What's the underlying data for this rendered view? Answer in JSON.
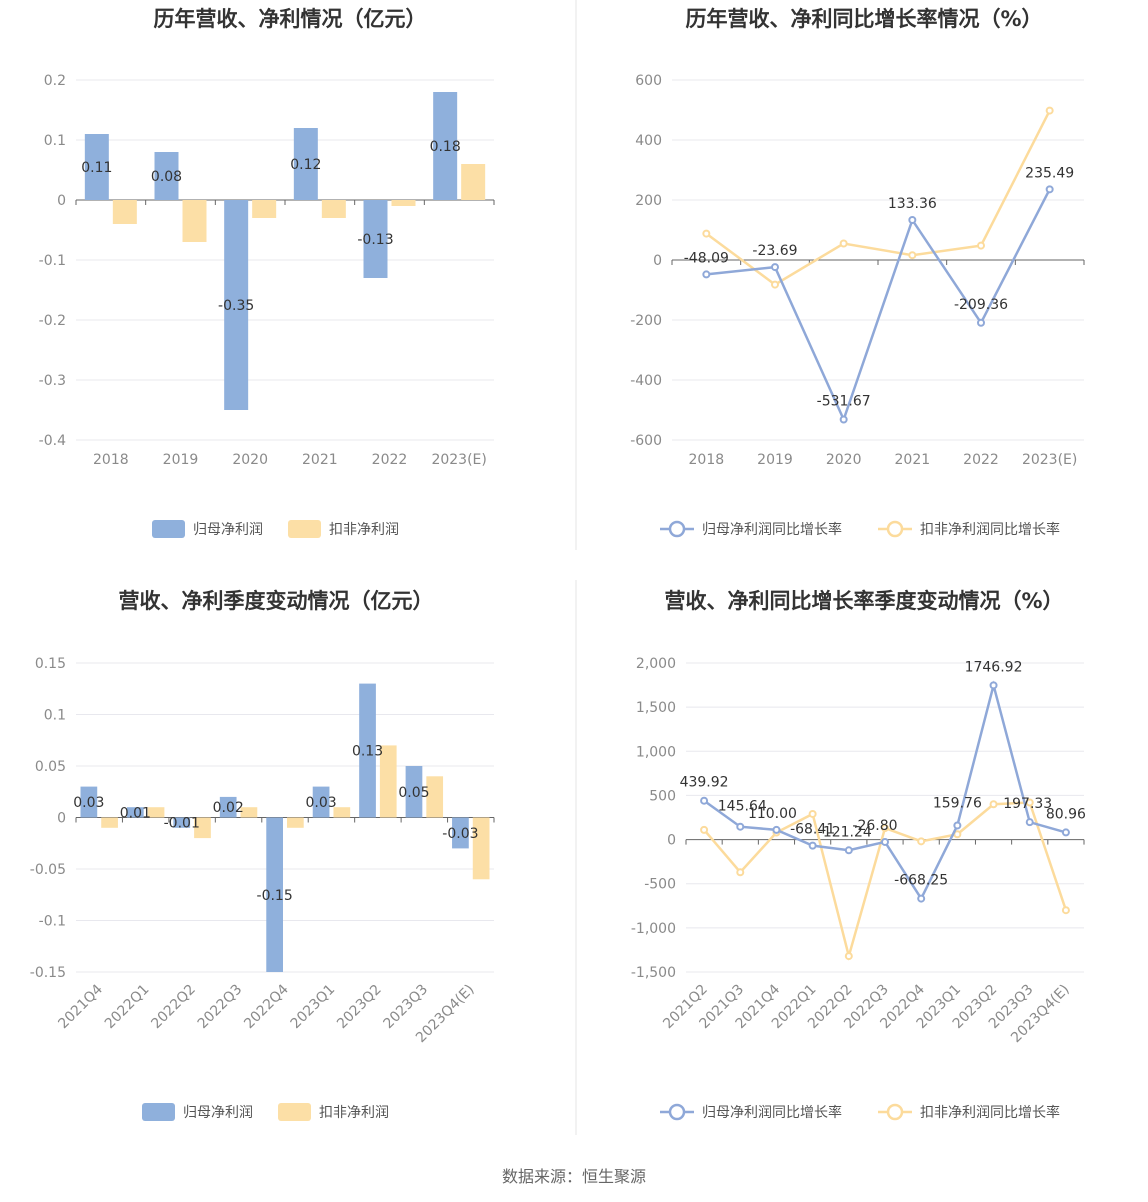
{
  "source_text": "数据来源：恒生聚源",
  "colors": {
    "blue": "#8fb0dc",
    "orange": "#fcdfa6",
    "blue_line": "#8fa8d8",
    "orange_line": "#fcdb9c"
  },
  "chart_data": [
    {
      "type": "bar",
      "title": "历年营收、净利情况（亿元）",
      "categories": [
        "2018",
        "2019",
        "2020",
        "2021",
        "2022",
        "2023(E)"
      ],
      "yticks": [
        "0.2",
        "0.1",
        "0",
        "-0.1",
        "-0.2",
        "-0.3",
        "-0.4"
      ],
      "ylim": [
        -0.4,
        0.2
      ],
      "series": [
        {
          "name": "归母净利润",
          "values": [
            0.11,
            0.08,
            -0.35,
            0.12,
            -0.13,
            0.18
          ],
          "labels": [
            "0.11",
            "0.08",
            "-0.35",
            "0.12",
            "-0.13",
            "0.18"
          ]
        },
        {
          "name": "扣非净利润",
          "values": [
            -0.04,
            -0.07,
            -0.03,
            -0.03,
            -0.01,
            0.06
          ]
        }
      ]
    },
    {
      "type": "line",
      "title": "历年营收、净利同比增长率情况（%）",
      "categories": [
        "2018",
        "2019",
        "2020",
        "2021",
        "2022",
        "2023(E)"
      ],
      "yticks": [
        "600",
        "400",
        "200",
        "0",
        "-200",
        "-400",
        "-600"
      ],
      "ylim": [
        -600,
        600
      ],
      "series": [
        {
          "name": "归母净利润同比增长率",
          "values": [
            -48.09,
            -23.69,
            -531.67,
            133.36,
            -209.36,
            235.49
          ],
          "labels": [
            "-48.09",
            "-23.69",
            "-531.67",
            "133.36",
            "-209.36",
            "235.49"
          ]
        },
        {
          "name": "扣非净利润同比增长率",
          "values": [
            88,
            -82,
            55,
            16,
            48,
            498
          ]
        }
      ]
    },
    {
      "type": "bar",
      "title": "营收、净利季度变动情况（亿元）",
      "categories": [
        "2021Q4",
        "2022Q1",
        "2022Q2",
        "2022Q3",
        "2022Q4",
        "2023Q1",
        "2023Q2",
        "2023Q3",
        "2023Q4(E)"
      ],
      "yticks": [
        "0.15",
        "0.1",
        "0.05",
        "0",
        "-0.05",
        "-0.1",
        "-0.15"
      ],
      "ylim": [
        -0.15,
        0.15
      ],
      "series": [
        {
          "name": "归母净利润",
          "values": [
            0.03,
            0.01,
            -0.01,
            0.02,
            -0.15,
            0.03,
            0.13,
            0.05,
            -0.03
          ],
          "labels": [
            "0.03",
            "0.01",
            "-0.01",
            "0.02",
            "-0.15",
            "0.03",
            "0.13",
            "0.05",
            "-0.03"
          ]
        },
        {
          "name": "扣非净利润",
          "values": [
            -0.01,
            0.01,
            -0.02,
            0.01,
            -0.01,
            0.01,
            0.07,
            0.04,
            -0.06
          ]
        }
      ]
    },
    {
      "type": "line",
      "title": "营收、净利同比增长率季度变动情况（%）",
      "categories": [
        "2021Q2",
        "2021Q3",
        "2021Q4",
        "2022Q1",
        "2022Q2",
        "2022Q3",
        "2022Q4",
        "2023Q1",
        "2023Q2",
        "2023Q3",
        "2023Q4(E)"
      ],
      "yticks": [
        "2,000",
        "1,500",
        "1,000",
        "500",
        "0",
        "-500",
        "-1,000",
        "-1,500"
      ],
      "ylim": [
        -1500,
        2000
      ],
      "series": [
        {
          "name": "归母净利润同比增长率",
          "values": [
            439.92,
            145.64,
            110.0,
            -68.41,
            -121.24,
            -26.8,
            -668.25,
            159.76,
            1746.92,
            197.33,
            80.96
          ],
          "labels": [
            "439.92",
            "145.64",
            "110.00",
            "-68.41",
            "-121.24",
            "-26.80",
            "-668.25",
            "159.76",
            "1746.92",
            "197.33",
            "80.96"
          ]
        },
        {
          "name": "扣非净利润同比增长率",
          "values": [
            110,
            -370,
            80,
            290,
            -1320,
            130,
            -20,
            60,
            400,
            420,
            -800
          ]
        }
      ]
    }
  ]
}
